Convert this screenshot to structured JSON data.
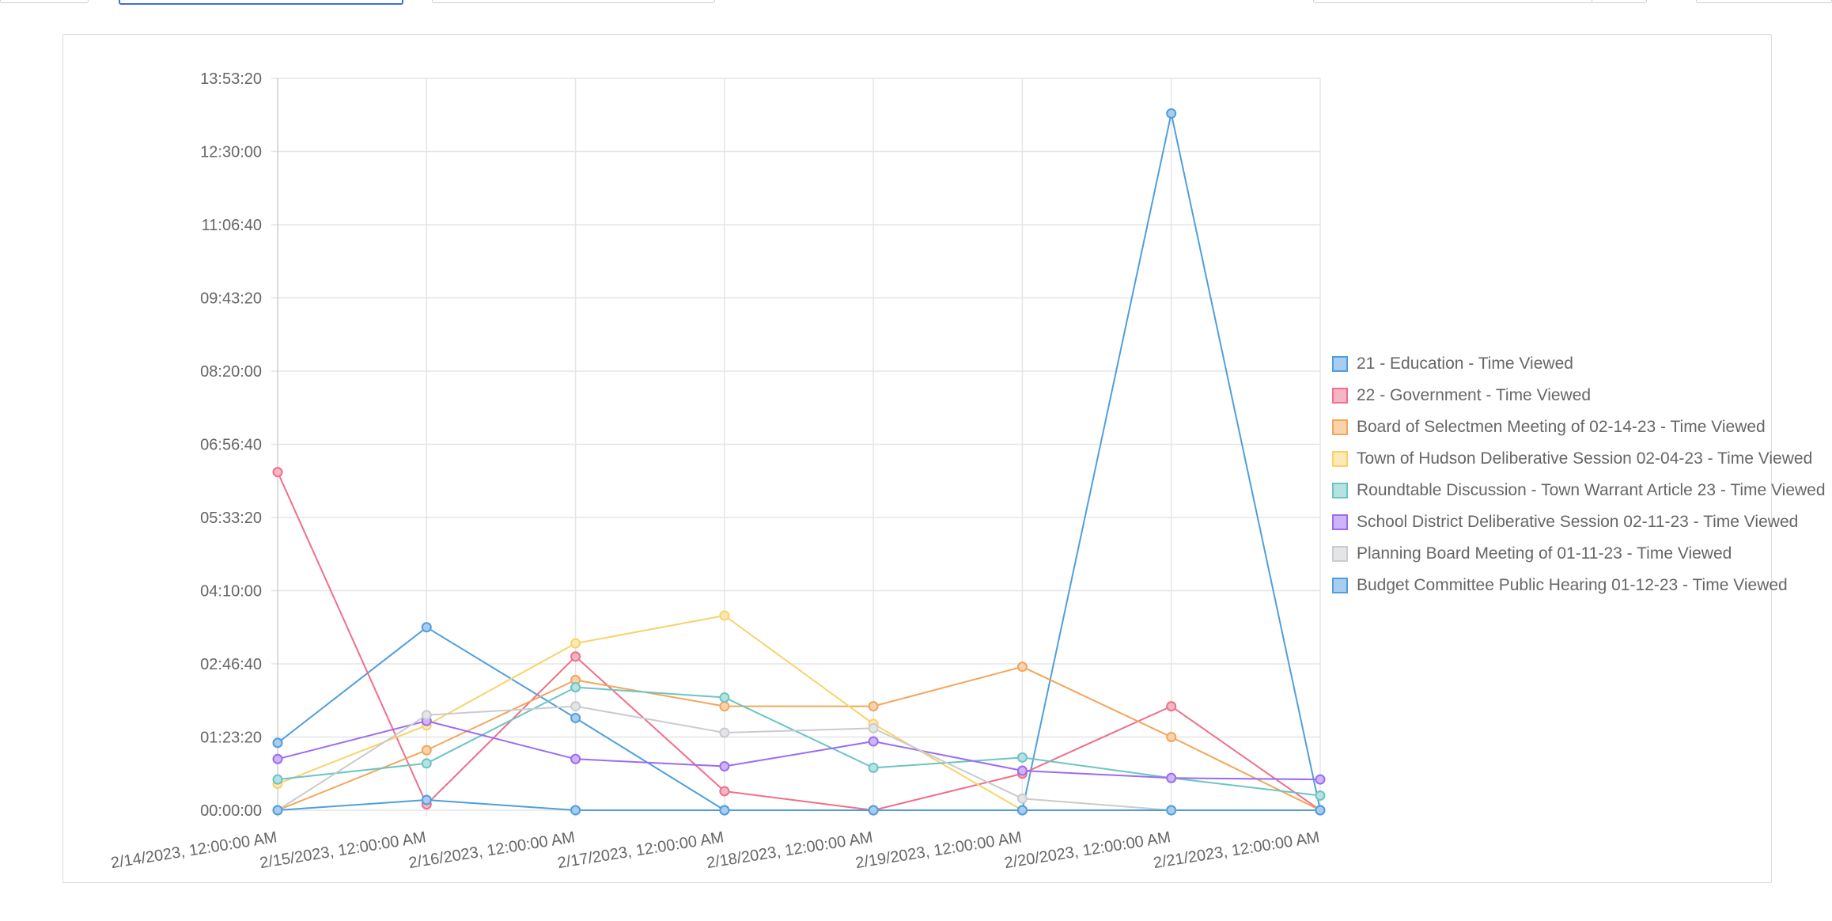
{
  "chart_data": {
    "type": "line",
    "title": "",
    "xlabel": "",
    "ylabel": "",
    "x": [
      "2/14/2023, 12:00:00 AM",
      "2/15/2023, 12:00:00 AM",
      "2/16/2023, 12:00:00 AM",
      "2/17/2023, 12:00:00 AM",
      "2/18/2023, 12:00:00 AM",
      "2/19/2023, 12:00:00 AM",
      "2/20/2023, 12:00:00 AM",
      "2/21/2023, 12:00:00 AM"
    ],
    "y_unit": "seconds",
    "ylim": [
      0,
      50000
    ],
    "y_ticks": [
      "00:00:00",
      "01:23:20",
      "02:46:40",
      "04:10:00",
      "05:33:20",
      "06:56:40",
      "08:20:00",
      "09:43:20",
      "11:06:40",
      "12:30:00",
      "13:53:20"
    ],
    "grid": true,
    "legend_position": "right",
    "series": [
      {
        "name": "21 - Education - Time Viewed",
        "color": "#4f9fdc",
        "fill": "#a9cdf1",
        "values": [
          4600,
          12500,
          6300,
          0,
          0,
          0,
          47600,
          0
        ]
      },
      {
        "name": "22 - Government - Time Viewed",
        "color": "#ef6f8a",
        "fill": "#f8b5c4",
        "values": [
          23100,
          400,
          10500,
          1300,
          0,
          2500,
          7100,
          0
        ]
      },
      {
        "name": "Board of Selectmen Meeting of 02-14-23 - Time Viewed",
        "color": "#f2a65a",
        "fill": "#f9d3ad",
        "values": [
          0,
          4100,
          8900,
          7100,
          7100,
          9800,
          5000,
          0
        ]
      },
      {
        "name": "Town of Hudson Deliberative Session 02-04-23 - Time Viewed",
        "color": "#f9d26a",
        "fill": "#fde9b7",
        "values": [
          1800,
          5800,
          11400,
          13300,
          5900,
          0,
          0,
          0
        ]
      },
      {
        "name": "Roundtable Discussion - Town Warrant Article 23 - Time Viewed",
        "color": "#6cc4c4",
        "fill": "#b6e2e2",
        "values": [
          2100,
          3200,
          8400,
          7700,
          2900,
          3600,
          2200,
          1000
        ]
      },
      {
        "name": "School District Deliberative Session 02-11-23 - Time Viewed",
        "color": "#9b6cf0",
        "fill": "#cdb6f7",
        "values": [
          3500,
          6100,
          3500,
          3000,
          4700,
          2700,
          2200,
          2100
        ]
      },
      {
        "name": "Planning Board Meeting of 01-11-23 - Time Viewed",
        "color": "#c9cbcf",
        "fill": "#e4e5e7",
        "values": [
          0,
          6500,
          7100,
          5300,
          5600,
          800,
          0,
          0
        ]
      },
      {
        "name": "Budget Committee Public Hearing 01-12-23 - Time Viewed",
        "color": "#4f9fdc",
        "fill": "#a9cdf1",
        "values": [
          0,
          700,
          0,
          0,
          0,
          0,
          0,
          0
        ]
      }
    ]
  }
}
